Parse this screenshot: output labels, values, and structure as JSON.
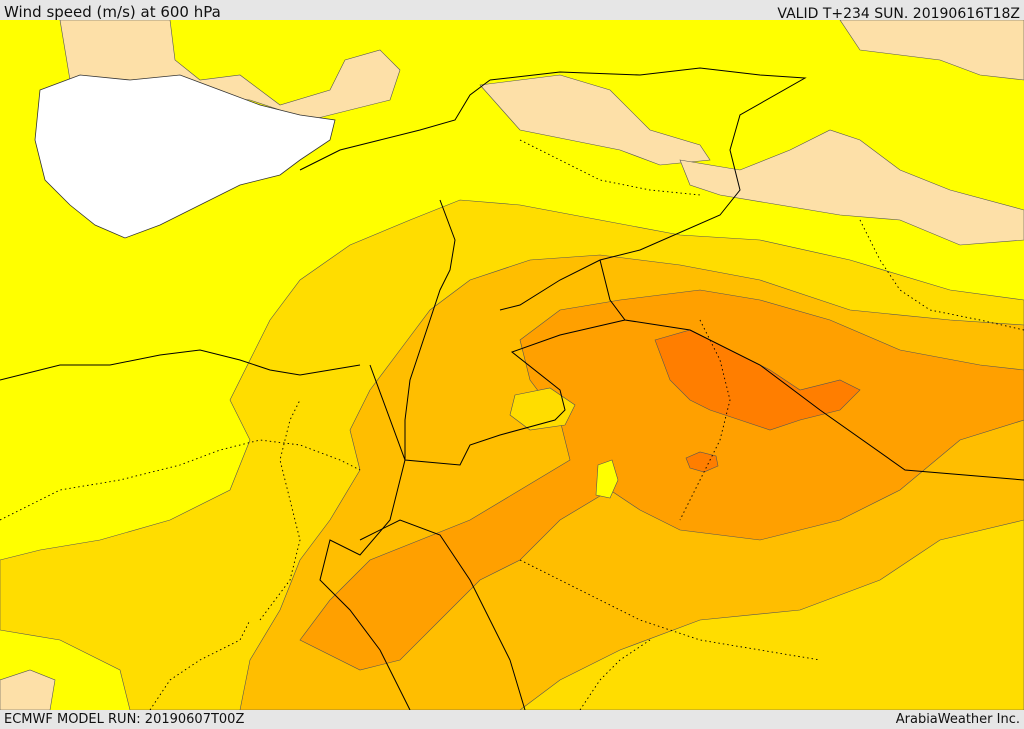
{
  "header": {
    "title": "Wind speed (m/s) at 600 hPa",
    "valid": "VALID T+234 SUN. 20190616T18Z"
  },
  "footer": {
    "model_run": "ECMWF MODEL RUN: 20190607T00Z",
    "credit": "ArabiaWeather Inc."
  },
  "colors": {
    "sea_white": "#ffffff",
    "band_light": "#fde0a8",
    "band_yellow": "#ffff00",
    "band_gold": "#ffdd00",
    "band_amber": "#ffbe00",
    "band_orange": "#ffa000",
    "band_dark_orange": "#ff7e00",
    "border_line": "#000000"
  }
}
